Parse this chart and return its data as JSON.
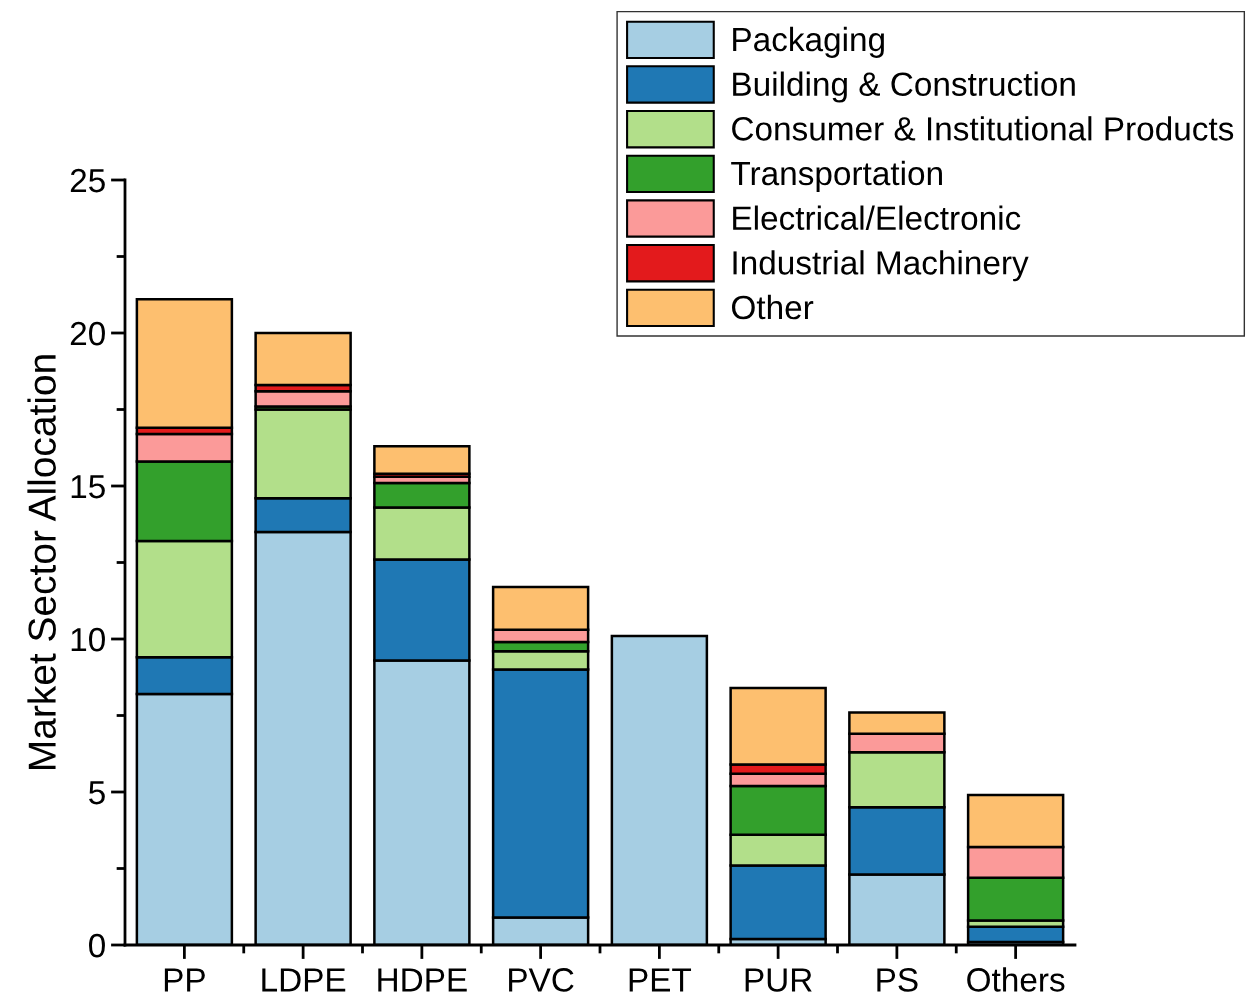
{
  "chart_data": {
    "type": "bar",
    "stacked": true,
    "ylabel": "Market Sector Allocation",
    "categories": [
      "PP",
      "LDPE",
      "HDPE",
      "PVC",
      "PET",
      "PUR",
      "PS",
      "Others"
    ],
    "series": [
      {
        "name": "Packaging",
        "color": "#a6cee3",
        "values": [
          8.2,
          13.5,
          9.3,
          0.9,
          10.1,
          0.2,
          2.3,
          0.1
        ]
      },
      {
        "name": "Building & Construction",
        "color": "#1f78b4",
        "values": [
          1.2,
          1.1,
          3.3,
          8.1,
          null,
          2.4,
          2.2,
          0.5
        ]
      },
      {
        "name": "Consumer & Institutional Products",
        "color": "#b2df8a",
        "values": [
          3.8,
          2.9,
          1.7,
          0.6,
          null,
          1.0,
          1.8,
          0.2
        ]
      },
      {
        "name": "Transportation",
        "color": "#33a02c",
        "values": [
          2.6,
          0.1,
          0.8,
          0.3,
          null,
          1.6,
          null,
          1.4
        ]
      },
      {
        "name": "Electrical/Electronic",
        "color": "#fb9a99",
        "values": [
          0.9,
          0.5,
          0.2,
          0.4,
          null,
          0.4,
          0.6,
          1.0
        ]
      },
      {
        "name": "Industrial Machinery",
        "color": "#e31a1c",
        "values": [
          0.2,
          0.2,
          0.1,
          null,
          null,
          0.3,
          null,
          null
        ]
      },
      {
        "name": "Other",
        "color": "#fdbf6f",
        "values": [
          4.2,
          1.7,
          0.9,
          1.4,
          null,
          2.5,
          0.7,
          1.7
        ]
      }
    ],
    "ylim": [
      0,
      25
    ],
    "yticks": [
      0,
      5,
      10,
      15,
      20,
      25
    ],
    "grid": false,
    "legend": "top right"
  }
}
